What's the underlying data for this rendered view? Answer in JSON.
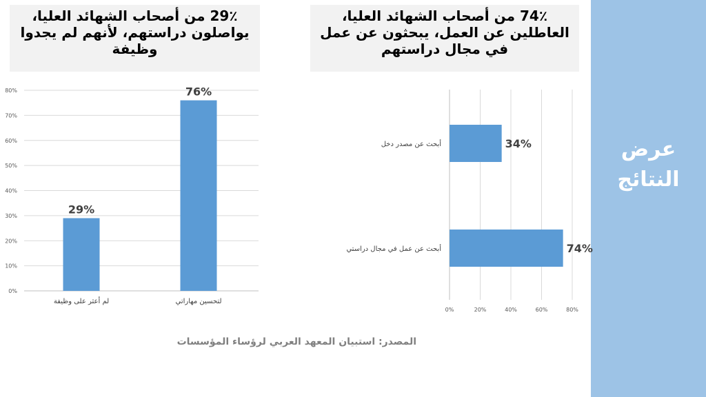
{
  "slide": {
    "side_title": "عرض النتائج",
    "colors": {
      "sidebar": "#9dc3e6",
      "bar": "#5b9bd5",
      "title_box": "#f2f2f2"
    }
  },
  "titles": {
    "left": "29٪ من أصحاب الشهائد العليا، يواصلون دراستهم، لأنهم لم يجدوا وظيفة",
    "right": "74٪ من أصحاب الشهائد العليا، العاطلين عن العمل، يبحثون عن عمل في مجال دراستهم"
  },
  "source": "المصدر: استبيان المعهد العربي لرؤساء المؤسسات",
  "chart_data": [
    {
      "type": "bar",
      "orientation": "vertical",
      "categories": [
        "لم أعثر على وظيفة",
        "لتحسين مهاراتي"
      ],
      "values": [
        29,
        76
      ],
      "data_labels": [
        "29%",
        "76%"
      ],
      "y_ticks": [
        "0%",
        "10%",
        "20%",
        "30%",
        "40%",
        "50%",
        "60%",
        "70%",
        "80%"
      ],
      "ylim": [
        0,
        80
      ],
      "grid": true,
      "legend": "none"
    },
    {
      "type": "bar",
      "orientation": "horizontal",
      "categories": [
        "أبحث عن مصدر دخل",
        "أبحث عن عمل في مجال دراستي"
      ],
      "values": [
        34,
        74
      ],
      "data_labels": [
        "34%",
        "74%"
      ],
      "x_ticks": [
        "0%",
        "20%",
        "40%",
        "60%",
        "80%"
      ],
      "xlim": [
        0,
        80
      ],
      "grid": true,
      "legend": "none"
    }
  ]
}
